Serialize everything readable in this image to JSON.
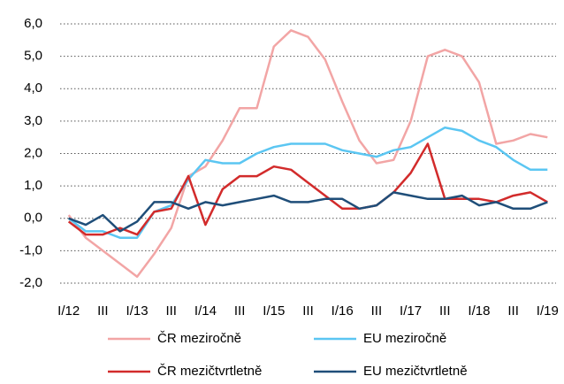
{
  "chart_data": {
    "type": "line",
    "categories": [
      "I/12",
      null,
      "III",
      null,
      "I/13",
      null,
      "III",
      null,
      "I/14",
      null,
      "III",
      null,
      "I/15",
      null,
      "III",
      null,
      "I/16",
      null,
      "III",
      null,
      "I/17",
      null,
      "III",
      null,
      "I/18",
      null,
      "III",
      null,
      "I/19"
    ],
    "series": [
      {
        "name": "ČR meziročně",
        "color": "#f2a5a5",
        "values": [
          0.1,
          -0.6,
          -1.0,
          -1.4,
          -1.8,
          -1.1,
          -0.3,
          1.3,
          1.6,
          2.4,
          3.4,
          3.4,
          5.3,
          5.8,
          5.6,
          4.9,
          3.6,
          2.4,
          1.7,
          1.8,
          3.0,
          5.0,
          5.2,
          5.0,
          4.2,
          2.3,
          2.4,
          2.6,
          2.5
        ]
      },
      {
        "name": "EU meziročně",
        "color": "#5bc6f2",
        "values": [
          0.0,
          -0.4,
          -0.4,
          -0.6,
          -0.6,
          0.2,
          0.4,
          1.2,
          1.8,
          1.7,
          1.7,
          2.0,
          2.2,
          2.3,
          2.3,
          2.3,
          2.1,
          2.0,
          1.9,
          2.1,
          2.2,
          2.5,
          2.8,
          2.7,
          2.4,
          2.2,
          1.8,
          1.5,
          1.5
        ]
      },
      {
        "name": "ČR mezičtvrtletně",
        "color": "#d22b2b",
        "values": [
          -0.1,
          -0.5,
          -0.5,
          -0.3,
          -0.5,
          0.2,
          0.3,
          1.3,
          -0.2,
          0.9,
          1.3,
          1.3,
          1.6,
          1.5,
          1.1,
          0.7,
          0.3,
          0.3,
          0.4,
          0.8,
          1.4,
          2.3,
          0.6,
          0.6,
          0.6,
          0.5,
          0.7,
          0.8,
          0.5
        ]
      },
      {
        "name": "EU mezičtvrtletně",
        "color": "#1f4e79",
        "values": [
          0.0,
          -0.2,
          0.1,
          -0.4,
          -0.1,
          0.5,
          0.5,
          0.3,
          0.5,
          0.4,
          0.5,
          0.6,
          0.7,
          0.5,
          0.5,
          0.6,
          0.6,
          0.3,
          0.4,
          0.8,
          0.7,
          0.6,
          0.6,
          0.7,
          0.4,
          0.5,
          0.3,
          0.3,
          0.5
        ]
      }
    ],
    "ylim": [
      -2,
      6
    ],
    "yticks": [
      {
        "value": -2,
        "label": "-2,0"
      },
      {
        "value": -1,
        "label": "-1,0"
      },
      {
        "value": 0,
        "label": "0,0"
      },
      {
        "value": 1,
        "label": "1,0"
      },
      {
        "value": 2,
        "label": "2,0"
      },
      {
        "value": 3,
        "label": "3,0"
      },
      {
        "value": 4,
        "label": "4,0"
      },
      {
        "value": 5,
        "label": "5,0"
      },
      {
        "value": 6,
        "label": "6,0"
      }
    ],
    "grid": true,
    "legend": "bottom"
  }
}
